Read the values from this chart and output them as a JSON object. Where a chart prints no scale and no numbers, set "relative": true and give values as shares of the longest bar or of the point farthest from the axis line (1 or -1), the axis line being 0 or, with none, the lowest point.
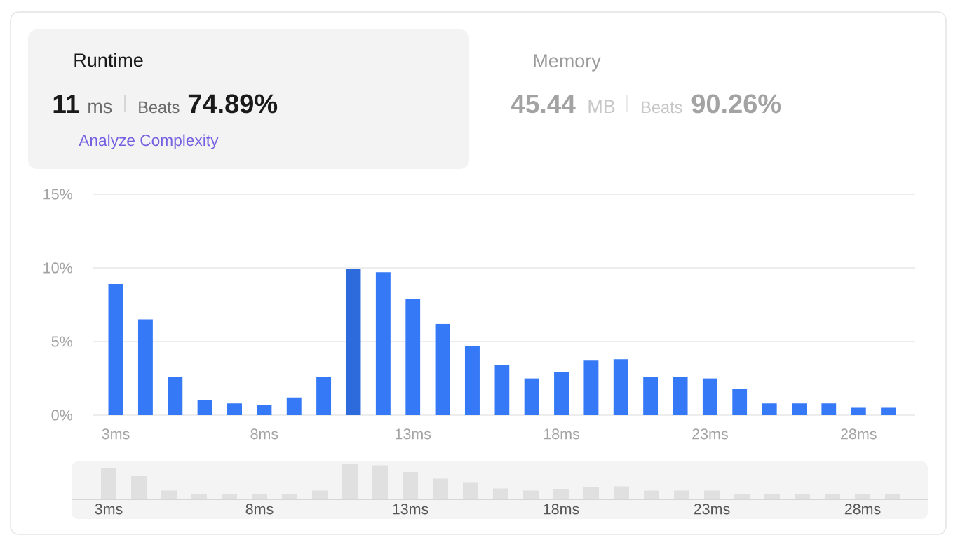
{
  "chart_data": [
    {
      "type": "other",
      "title": "Runtime",
      "annotations": [
        "11",
        "ms",
        "Beats",
        "74.89%",
        "Analyze Complexity"
      ]
    },
    {
      "type": "other",
      "title": "Memory",
      "annotations": [
        "45.44",
        "MB",
        "Beats",
        "90.26%"
      ]
    },
    {
      "type": "bar",
      "categories": [
        "3ms",
        null,
        null,
        null,
        null,
        "8ms",
        null,
        null,
        null,
        null,
        "13ms",
        null,
        null,
        null,
        null,
        "18ms",
        null,
        null,
        null,
        null,
        "23ms",
        null,
        null,
        null,
        null,
        "28ms",
        null
      ],
      "values": [
        8.9,
        6.5,
        2.6,
        1.0,
        0.8,
        0.7,
        1.2,
        2.6,
        9.9,
        9.7,
        7.9,
        6.2,
        4.7,
        3.4,
        2.5,
        2.9,
        3.7,
        3.8,
        2.6,
        2.6,
        2.5,
        1.8,
        0.8,
        0.8,
        0.8,
        0.5,
        0.5
      ],
      "colors": [
        "#3579f6",
        "#3579f6",
        "#3579f6",
        "#3579f6",
        "#3579f6",
        "#3579f6",
        "#3579f6",
        "#3579f6",
        "#2d6adc",
        "#3579f6",
        "#3579f6",
        "#3579f6",
        "#3579f6",
        "#3579f6",
        "#3579f6",
        "#3579f6",
        "#3579f6",
        "#3579f6",
        "#3579f6",
        "#3579f6",
        "#3579f6",
        "#3579f6",
        "#3579f6",
        "#3579f6",
        "#3579f6",
        "#3579f6",
        "#3579f6"
      ],
      "ylim": [
        0,
        15
      ],
      "yticks": [
        {
          "value": 0,
          "label": "0%"
        },
        {
          "value": 5,
          "label": "5%"
        },
        {
          "value": 10,
          "label": "10%"
        },
        {
          "value": 15,
          "label": "15%"
        }
      ],
      "grid": "y"
    },
    {
      "type": "bar",
      "relative": true,
      "categories": [
        "3ms",
        null,
        null,
        null,
        null,
        "8ms",
        null,
        null,
        null,
        null,
        "13ms",
        null,
        null,
        null,
        null,
        "18ms",
        null,
        null,
        null,
        null,
        "23ms",
        null,
        null,
        null,
        null,
        "28ms",
        null
      ],
      "values": [
        0.88,
        0.66,
        0.25,
        0.16,
        0.16,
        0.16,
        0.16,
        0.25,
        1,
        0.97,
        0.78,
        0.59,
        0.47,
        0.31,
        0.25,
        0.28,
        0.34,
        0.37,
        0.25,
        0.25,
        0.25,
        0.16,
        0.16,
        0.16,
        0.16,
        0.16,
        0.16
      ],
      "color": "#e0e0e0"
    }
  ]
}
